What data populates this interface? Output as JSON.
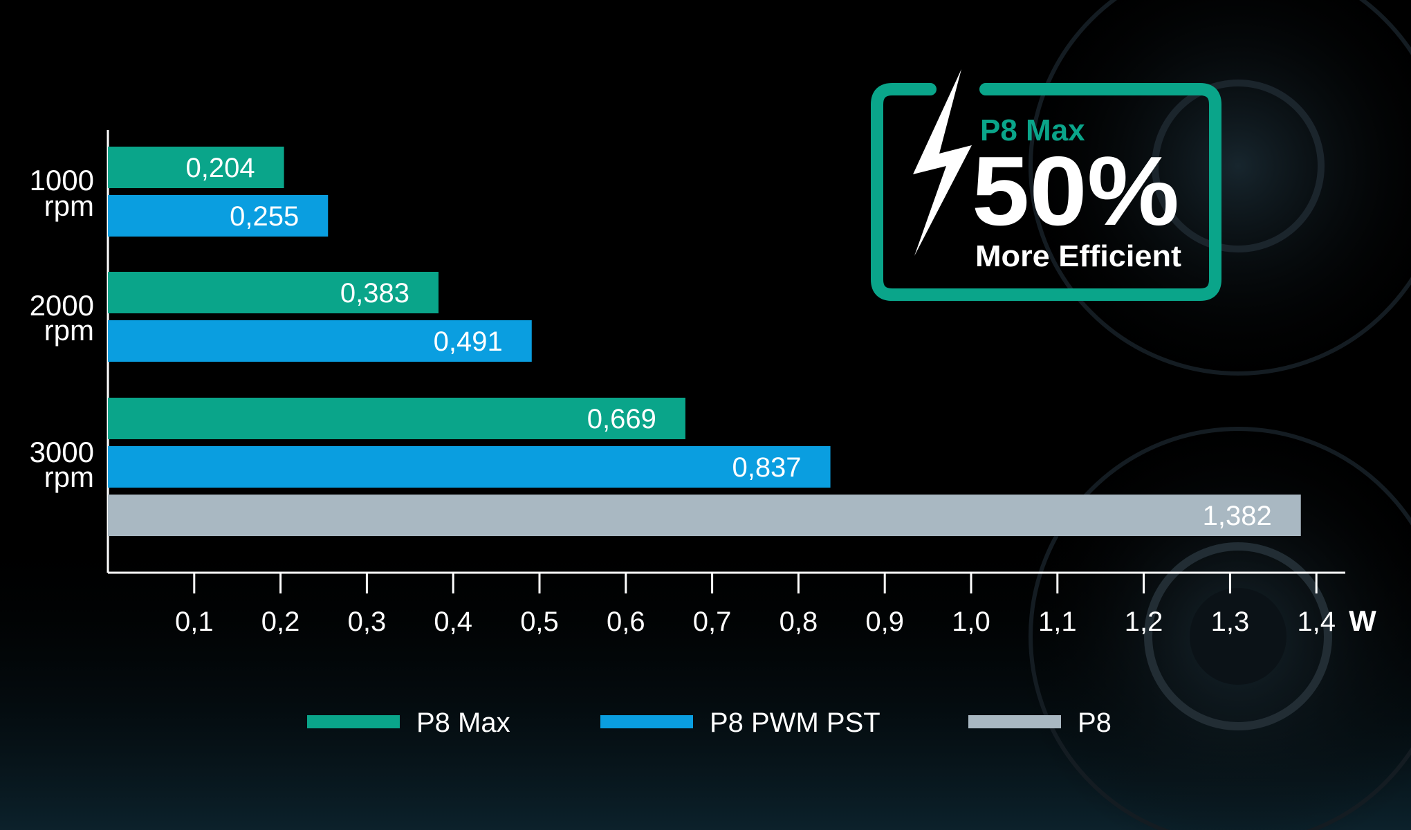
{
  "chart_data": {
    "type": "bar",
    "orientation": "horizontal",
    "categories": [
      [
        "1000",
        "rpm"
      ],
      [
        "2000",
        "rpm"
      ],
      [
        "3000",
        "rpm"
      ]
    ],
    "series": [
      {
        "name": "P8 Max",
        "color": "#0aa58a",
        "values": [
          0.204,
          0.383,
          0.669
        ],
        "labels": [
          "0,204",
          "0,383",
          "0,669"
        ]
      },
      {
        "name": "P8 PWM PST",
        "color": "#0a9ee0",
        "values": [
          0.255,
          0.491,
          0.837
        ],
        "labels": [
          "0,255",
          "0,491",
          "0,837"
        ]
      },
      {
        "name": "P8",
        "color": "#a9b8c2",
        "values": [
          null,
          null,
          1.382
        ],
        "labels": [
          null,
          null,
          "1,382"
        ]
      }
    ],
    "x_ticks": [
      "0,1",
      "0,2",
      "0,3",
      "0,4",
      "0,5",
      "0,6",
      "0,7",
      "0,8",
      "0,9",
      "1,0",
      "1,1",
      "1,2",
      "1,3",
      "1,4"
    ],
    "x_tick_values": [
      0.1,
      0.2,
      0.3,
      0.4,
      0.5,
      0.6,
      0.7,
      0.8,
      0.9,
      1.0,
      1.1,
      1.2,
      1.3,
      1.4
    ],
    "xlim": [
      0,
      1.44
    ],
    "xunit": "W",
    "legend_position": "bottom"
  },
  "badge": {
    "model": "P8 Max",
    "percent": "50%",
    "tagline": "More Efficient",
    "accent": "#0aa58a",
    "icon": "lightning-bolt-icon"
  },
  "colors": {
    "background": "#000000",
    "text": "#ffffff",
    "axis": "#ffffff"
  }
}
